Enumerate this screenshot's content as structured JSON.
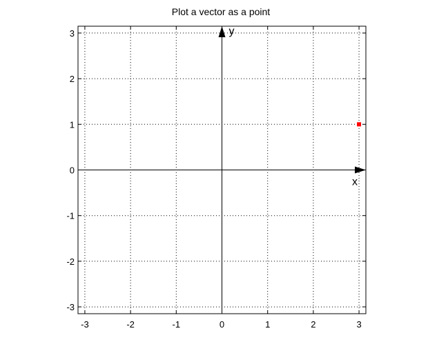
{
  "chart_data": {
    "type": "scatter",
    "title": "Plot a vector as a point",
    "x_axis_name": "x",
    "y_axis_name": "y",
    "xlim": [
      -3.15,
      3.15
    ],
    "ylim": [
      -3.15,
      3.15
    ],
    "x_ticks": [
      -3,
      -2,
      -1,
      0,
      1,
      2,
      3
    ],
    "y_ticks": [
      -3,
      -2,
      -1,
      0,
      1,
      2,
      3
    ],
    "x_tick_labels": [
      "-3",
      "-2",
      "-1",
      "0",
      "1",
      "2",
      "3"
    ],
    "y_tick_labels": [
      "-3",
      "-2",
      "-1",
      "0",
      "1",
      "2",
      "3"
    ],
    "grid": true,
    "grid_style": "dotted",
    "points": [
      {
        "x": 3,
        "y": 1
      }
    ],
    "point_color": "#ff0000",
    "axis_color": "#000000"
  }
}
